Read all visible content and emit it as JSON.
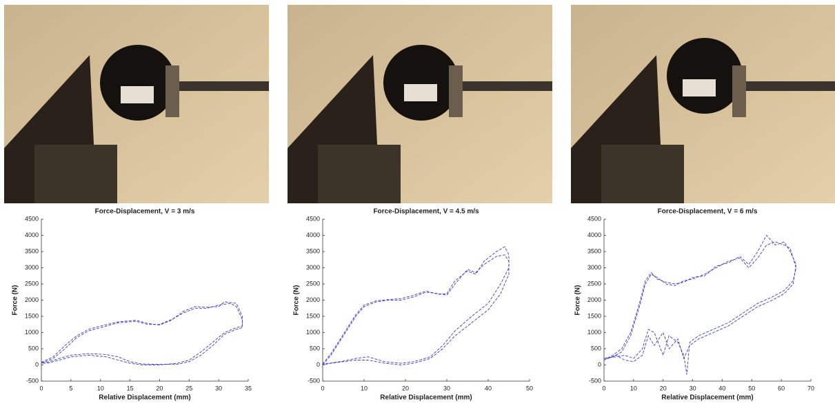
{
  "chart_data": [
    {
      "type": "line",
      "title": "Force-Displacement, V = 3 m/s",
      "xlabel": "Relative Displacement (mm)",
      "ylabel": "Force (N)",
      "xlim": [
        0,
        35
      ],
      "xticks": [
        0,
        5,
        10,
        15,
        20,
        25,
        30,
        35
      ],
      "ylim": [
        -500,
        4500
      ],
      "yticks": [
        -500,
        0,
        500,
        1000,
        1500,
        2000,
        2500,
        3000,
        3500,
        4000,
        4500
      ],
      "series": [
        {
          "color": "#3a3ad0",
          "x": [
            0,
            2,
            4,
            6,
            8,
            10,
            13,
            16,
            18,
            20,
            22,
            24,
            26,
            28,
            30,
            32,
            33,
            34,
            34,
            33,
            31,
            29,
            27,
            25,
            23,
            20,
            17,
            15,
            13,
            11,
            8,
            5,
            3,
            1,
            0
          ],
          "values": [
            50,
            200,
            500,
            850,
            1050,
            1150,
            1300,
            1350,
            1250,
            1250,
            1400,
            1600,
            1750,
            1750,
            1850,
            1900,
            1800,
            1400,
            1200,
            1150,
            1000,
            700,
            400,
            150,
            50,
            0,
            0,
            50,
            150,
            250,
            300,
            250,
            150,
            50,
            50
          ]
        },
        {
          "color": "#3a3ad0",
          "x": [
            0,
            2,
            4,
            6,
            8,
            10,
            13,
            16,
            18,
            20,
            22,
            24,
            26,
            28,
            30,
            31,
            33,
            34,
            34,
            33,
            31,
            29,
            27,
            25,
            23,
            20,
            17,
            15,
            13,
            11,
            8,
            5,
            3,
            1,
            0
          ],
          "values": [
            80,
            250,
            600,
            900,
            1100,
            1200,
            1330,
            1380,
            1280,
            1230,
            1380,
            1650,
            1800,
            1780,
            1800,
            1950,
            1900,
            1500,
            1150,
            1100,
            950,
            600,
            300,
            100,
            20,
            20,
            30,
            100,
            250,
            320,
            350,
            300,
            200,
            80,
            80
          ]
        }
      ]
    },
    {
      "type": "line",
      "title": "Force-Displacement, V = 4.5 m/s",
      "xlabel": "Relative Displacement (mm)",
      "ylabel": "Force (N)",
      "xlim": [
        0,
        50
      ],
      "xticks": [
        0,
        10,
        20,
        30,
        40,
        50
      ],
      "ylim": [
        -500,
        4500
      ],
      "yticks": [
        -500,
        0,
        500,
        1000,
        1500,
        2000,
        2500,
        3000,
        3500,
        4000,
        4500
      ],
      "series": [
        {
          "color": "#3a3ad0",
          "x": [
            0,
            2,
            4,
            6,
            8,
            10,
            13,
            16,
            19,
            22,
            25,
            28,
            30,
            32,
            35,
            37,
            39,
            42,
            44,
            45,
            45,
            43,
            40,
            36,
            32,
            29,
            26,
            22,
            19,
            15,
            11,
            8,
            5,
            2,
            0
          ],
          "values": [
            0,
            300,
            700,
            1100,
            1500,
            1800,
            1950,
            2000,
            2000,
            2100,
            2250,
            2200,
            2150,
            2500,
            2950,
            2850,
            3100,
            3350,
            3400,
            3200,
            2800,
            2200,
            1700,
            1300,
            900,
            500,
            200,
            50,
            0,
            50,
            150,
            150,
            100,
            50,
            0
          ]
        },
        {
          "color": "#3a3ad0",
          "x": [
            0,
            2,
            4,
            6,
            8,
            10,
            13,
            16,
            19,
            22,
            25,
            28,
            30,
            32,
            35,
            37,
            39,
            42,
            44,
            45,
            45,
            43,
            40,
            36,
            32,
            29,
            26,
            22,
            19,
            15,
            11,
            8,
            5,
            2,
            0
          ],
          "values": [
            30,
            350,
            750,
            1150,
            1550,
            1850,
            1980,
            2020,
            2050,
            2150,
            2280,
            2180,
            2200,
            2600,
            2900,
            2800,
            3200,
            3500,
            3650,
            3400,
            3000,
            2500,
            1900,
            1500,
            1050,
            600,
            250,
            100,
            50,
            100,
            250,
            200,
            120,
            60,
            30
          ]
        }
      ]
    },
    {
      "type": "line",
      "title": "Force-Displacement, V = 6 m/s",
      "xlabel": "Relative Displacement (mm)",
      "ylabel": "Force (N)",
      "xlim": [
        0,
        70
      ],
      "xticks": [
        0,
        10,
        20,
        30,
        40,
        50,
        60,
        70
      ],
      "ylim": [
        -500,
        4500
      ],
      "yticks": [
        -500,
        0,
        500,
        1000,
        1500,
        2000,
        2500,
        3000,
        3500,
        4000,
        4500
      ],
      "series": [
        {
          "color": "#3a3ad0",
          "x": [
            0,
            3,
            6,
            9,
            12,
            14,
            16,
            18,
            21,
            24,
            27,
            30,
            34,
            38,
            42,
            46,
            49,
            52,
            55,
            58,
            61,
            63,
            65,
            64,
            61,
            57,
            52,
            47,
            42,
            37,
            32,
            29,
            28,
            27,
            25,
            22,
            20,
            17,
            15,
            13,
            10,
            7,
            4,
            0
          ],
          "values": [
            200,
            250,
            400,
            900,
            1800,
            2500,
            2800,
            2700,
            2500,
            2450,
            2600,
            2650,
            2800,
            3000,
            3200,
            3300,
            3000,
            3300,
            3700,
            3800,
            3700,
            3600,
            3000,
            2600,
            2300,
            2100,
            1900,
            1600,
            1300,
            1100,
            900,
            700,
            -300,
            300,
            700,
            900,
            300,
            1000,
            1100,
            500,
            200,
            300,
            250,
            200
          ]
        },
        {
          "color": "#3a3ad0",
          "x": [
            0,
            3,
            6,
            9,
            12,
            14,
            16,
            18,
            21,
            24,
            27,
            30,
            34,
            38,
            42,
            46,
            49,
            52,
            55,
            58,
            61,
            63,
            65,
            64,
            61,
            57,
            52,
            47,
            42,
            37,
            32,
            29,
            27,
            25,
            22,
            20,
            17,
            15,
            13,
            10,
            7,
            4,
            0
          ],
          "values": [
            150,
            300,
            500,
            1000,
            1900,
            2600,
            2850,
            2650,
            2550,
            2500,
            2550,
            2700,
            2750,
            3050,
            3150,
            3350,
            3100,
            3500,
            4000,
            3700,
            3800,
            3500,
            3100,
            2500,
            2200,
            2000,
            1800,
            1500,
            1200,
            1000,
            800,
            600,
            200,
            800,
            500,
            1000,
            600,
            900,
            300,
            100,
            150,
            300,
            150
          ]
        }
      ]
    }
  ]
}
